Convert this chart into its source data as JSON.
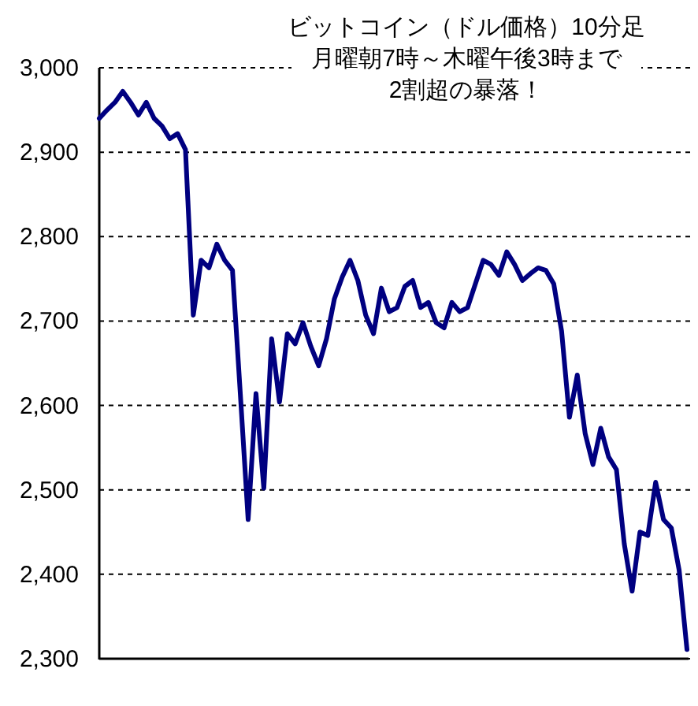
{
  "chart_data": {
    "type": "line",
    "title": "ビットコイン（ドル価格）10分足",
    "subtitle": "月曜朝7時～木曜午後3時まで",
    "annotations": [
      "2割超の暴落！"
    ],
    "categories": [
      null,
      null,
      null,
      null,
      null,
      null,
      null,
      null,
      null,
      null,
      null,
      null,
      null,
      null,
      null,
      null,
      null,
      null,
      null,
      null,
      null,
      null,
      null,
      null,
      null,
      null,
      null,
      null,
      null,
      null,
      null,
      null,
      null,
      null,
      null,
      null,
      null,
      null,
      null,
      null,
      null,
      null,
      null,
      null,
      null,
      null,
      null,
      null,
      null,
      null,
      null,
      null,
      null,
      null,
      null,
      null,
      null,
      null,
      null,
      null,
      null,
      null,
      null,
      null,
      null,
      null,
      null,
      null,
      null,
      null,
      null,
      null,
      null,
      null,
      null,
      null
    ],
    "series": [
      {
        "color": "#000080",
        "values": [
          2940,
          2950,
          2959,
          2972,
          2959,
          2944,
          2959,
          2940,
          2931,
          2916,
          2922,
          2903,
          2707,
          2772,
          2763,
          2791,
          2772,
          2760,
          2614,
          2465,
          2614,
          2502,
          2679,
          2604,
          2685,
          2673,
          2698,
          2670,
          2647,
          2679,
          2726,
          2752,
          2772,
          2748,
          2707,
          2685,
          2739,
          2711,
          2716,
          2741,
          2748,
          2716,
          2722,
          2698,
          2692,
          2722,
          2711,
          2716,
          2744,
          2772,
          2767,
          2754,
          2782,
          2767,
          2748,
          2756,
          2763,
          2760,
          2744,
          2688,
          2586,
          2636,
          2567,
          2530,
          2573,
          2539,
          2524,
          2436,
          2380,
          2450,
          2446,
          2509,
          2465,
          2455,
          2405,
          2311
        ]
      }
    ],
    "ylim": [
      2300,
      3000
    ],
    "yticks": [
      {
        "value": 2300,
        "label": "2,300"
      },
      {
        "value": 2400,
        "label": "2,400"
      },
      {
        "value": 2500,
        "label": "2,500"
      },
      {
        "value": 2600,
        "label": "2,600"
      },
      {
        "value": 2700,
        "label": "2,700"
      },
      {
        "value": 2800,
        "label": "2,800"
      },
      {
        "value": 2900,
        "label": "2,900"
      },
      {
        "value": 3000,
        "label": "3,000"
      }
    ],
    "grid": "y",
    "tick_labels": "y",
    "line_style": "solid"
  }
}
